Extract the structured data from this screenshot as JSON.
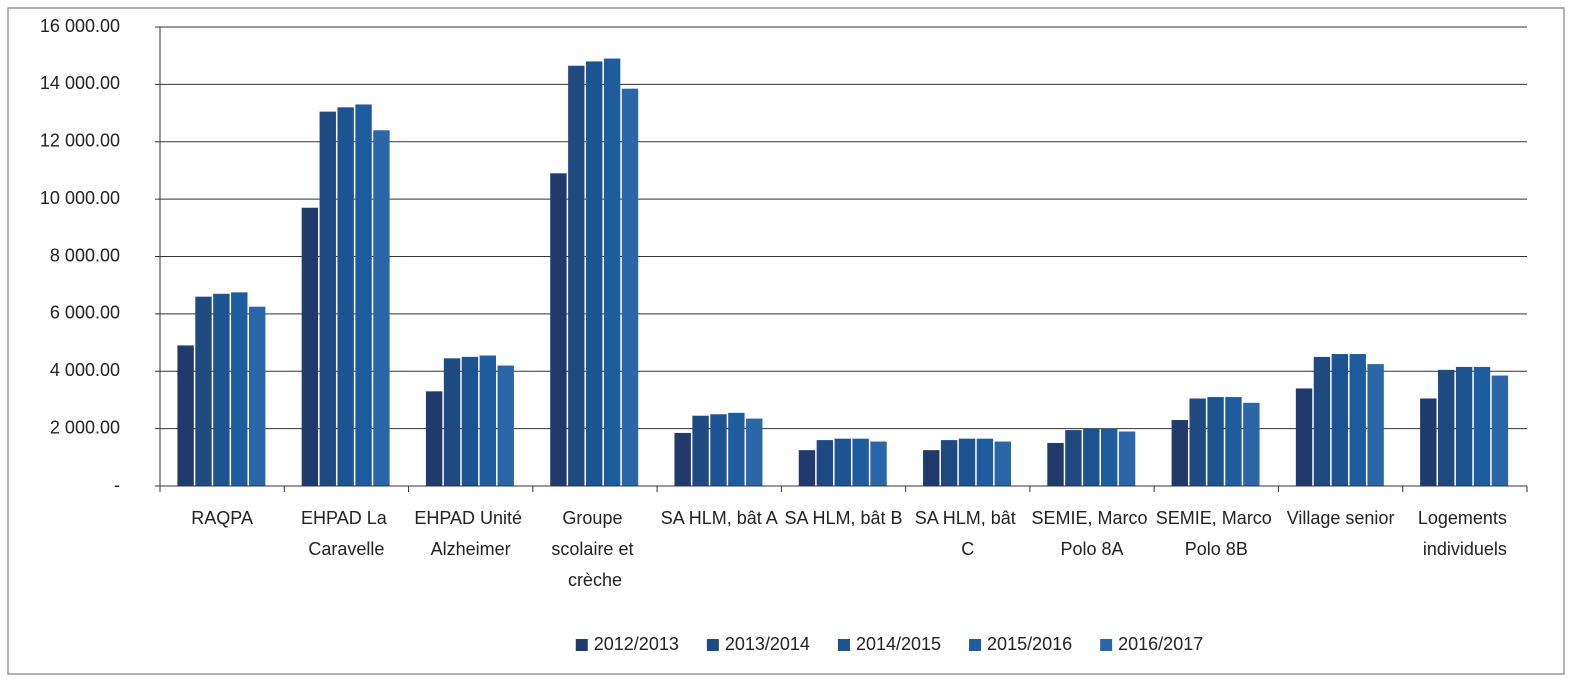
{
  "chart_data": {
    "type": "bar",
    "categories": [
      "RAQPA",
      "EHPAD La Caravelle",
      "EHPAD Unité Alzheimer",
      "Groupe scolaire et crèche",
      "SA HLM, bât A",
      "SA HLM, bât B",
      "SA HLM, bât C",
      "SEMIE, Marco Polo 8A",
      "SEMIE, Marco Polo 8B",
      "Village senior",
      "Logements individuels"
    ],
    "series": [
      {
        "name": "2012/2013",
        "color": "#1f3a6b",
        "values": [
          4900,
          9700,
          3300,
          10900,
          1850,
          1250,
          1250,
          1500,
          2300,
          3400,
          3050
        ]
      },
      {
        "name": "2013/2014",
        "color": "#1f4a80",
        "values": [
          6600,
          13050,
          4450,
          14650,
          2450,
          1600,
          1600,
          1950,
          3050,
          4500,
          4050
        ]
      },
      {
        "name": "2014/2015",
        "color": "#1d5390",
        "values": [
          6700,
          13200,
          4500,
          14800,
          2500,
          1650,
          1650,
          2000,
          3100,
          4600,
          4150
        ]
      },
      {
        "name": "2015/2016",
        "color": "#1f5c9e",
        "values": [
          6750,
          13300,
          4550,
          14900,
          2550,
          1650,
          1650,
          2000,
          3100,
          4600,
          4150
        ]
      },
      {
        "name": "2016/2017",
        "color": "#2a66a8",
        "values": [
          6250,
          12400,
          4200,
          13850,
          2350,
          1550,
          1550,
          1900,
          2900,
          4250,
          3850
        ]
      }
    ],
    "ylim": [
      0,
      16000
    ],
    "yticks": [
      {
        "value": 0,
        "label": "-"
      },
      {
        "value": 2000,
        "label": "2 000.00"
      },
      {
        "value": 4000,
        "label": "4 000.00"
      },
      {
        "value": 6000,
        "label": "6 000.00"
      },
      {
        "value": 8000,
        "label": "8 000.00"
      },
      {
        "value": 10000,
        "label": "10 000.00"
      },
      {
        "value": 12000,
        "label": "12 000.00"
      },
      {
        "value": 14000,
        "label": "14 000.00"
      },
      {
        "value": 16000,
        "label": "16 000.00"
      }
    ],
    "grid": true,
    "legend": "bottom"
  }
}
